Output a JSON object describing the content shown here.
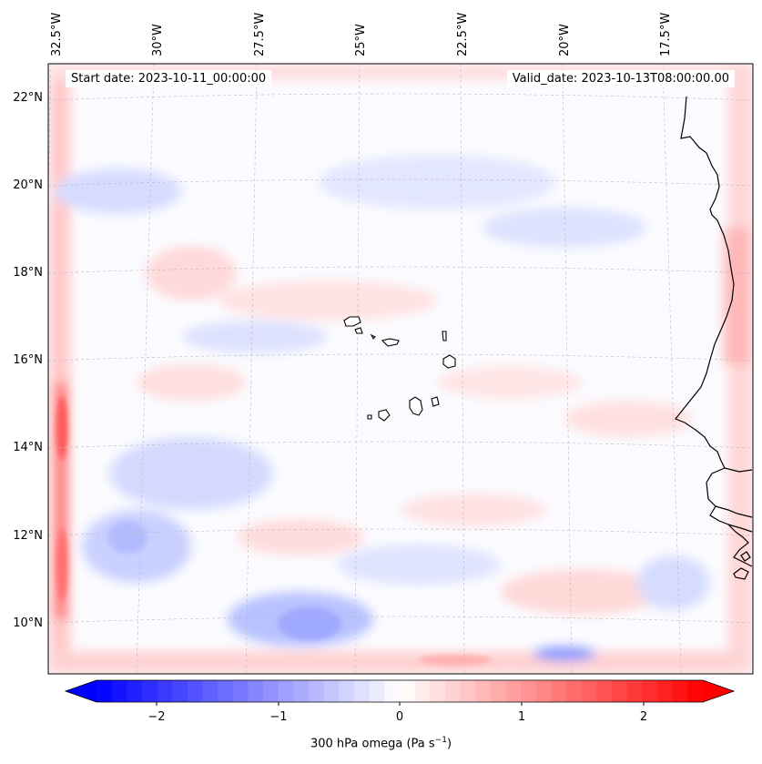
{
  "info": {
    "start_date": "Start date: 2023-10-11_00:00:00",
    "valid_date": "Valid_date: 2023-10-13T08:00:00.00"
  },
  "map": {
    "lon_labels": [
      "32.5°W",
      "30°W",
      "27.5°W",
      "25°W",
      "22.5°W",
      "20°W",
      "17.5°W"
    ],
    "lat_labels": [
      "22°N",
      "20°N",
      "18°N",
      "16°N",
      "14°N",
      "12°N",
      "10°N"
    ],
    "field_colors": {
      "negative": "#0000ff",
      "neutral": "#ffffff",
      "positive": "#ff0000"
    }
  },
  "colorbar": {
    "tick_labels": [
      "−2",
      "−1",
      "0",
      "1",
      "2"
    ],
    "label_prefix": "300 hPa omega (Pa s",
    "label_sup": "−1",
    "label_suffix": ")",
    "range": [
      -2.75,
      2.75
    ],
    "colors": {
      "min": "#0000ff",
      "mid": "#ffffff",
      "max": "#ff0000"
    }
  }
}
